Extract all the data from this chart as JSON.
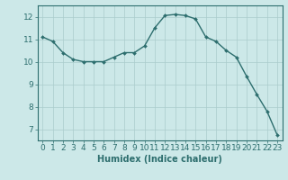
{
  "x": [
    0,
    1,
    2,
    3,
    4,
    5,
    6,
    7,
    8,
    9,
    10,
    11,
    12,
    13,
    14,
    15,
    16,
    17,
    18,
    19,
    20,
    21,
    22,
    23
  ],
  "y": [
    11.1,
    10.9,
    10.4,
    10.1,
    10.0,
    10.0,
    10.0,
    10.2,
    10.4,
    10.4,
    10.7,
    11.5,
    12.05,
    12.1,
    12.05,
    11.9,
    11.1,
    10.9,
    10.5,
    10.2,
    9.35,
    8.55,
    7.8,
    6.75
  ],
  "line_color": "#2d6e6e",
  "marker": "D",
  "marker_size": 2.0,
  "linewidth": 1.0,
  "bg_color": "#cce8e8",
  "grid_color_major": "#aacccc",
  "grid_color_minor": "#bbdddd",
  "xlabel": "Humidex (Indice chaleur)",
  "xlabel_fontsize": 7,
  "tick_fontsize": 6.5,
  "ylim": [
    6.5,
    12.5
  ],
  "xlim": [
    -0.5,
    23.5
  ],
  "yticks": [
    7,
    8,
    9,
    10,
    11,
    12
  ],
  "xticks": [
    0,
    1,
    2,
    3,
    4,
    5,
    6,
    7,
    8,
    9,
    10,
    11,
    12,
    13,
    14,
    15,
    16,
    17,
    18,
    19,
    20,
    21,
    22,
    23
  ]
}
